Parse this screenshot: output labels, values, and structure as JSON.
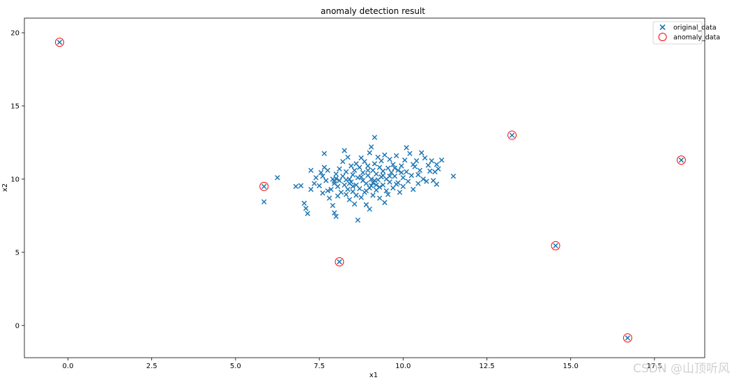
{
  "chart_data": {
    "type": "scatter",
    "title": "anomaly detection result",
    "xlabel": "x1",
    "ylabel": "x2",
    "xlim": [
      -1.3,
      19.0
    ],
    "ylim": [
      -2.2,
      21.0
    ],
    "xticks": [
      "0.0",
      "2.5",
      "5.0",
      "7.5",
      "10.0",
      "12.5",
      "15.0",
      "17.5"
    ],
    "xtick_values": [
      0.0,
      2.5,
      5.0,
      7.5,
      10.0,
      12.5,
      15.0,
      17.5
    ],
    "yticks": [
      "0",
      "5",
      "10",
      "15",
      "20"
    ],
    "ytick_values": [
      0,
      5,
      10,
      15,
      20
    ],
    "grid": false,
    "legend_position": "top-right",
    "series": [
      {
        "name": "original_data",
        "marker": "x",
        "color": "#1f77b4",
        "points": [
          [
            -0.25,
            19.35
          ],
          [
            5.85,
            9.5
          ],
          [
            8.1,
            4.35
          ],
          [
            13.25,
            13.0
          ],
          [
            14.55,
            5.45
          ],
          [
            16.7,
            -0.85
          ],
          [
            18.3,
            11.3
          ],
          [
            5.85,
            8.45
          ],
          [
            6.25,
            10.1
          ],
          [
            6.8,
            9.5
          ],
          [
            6.95,
            9.55
          ],
          [
            7.05,
            8.35
          ],
          [
            7.1,
            8.0
          ],
          [
            7.15,
            7.65
          ],
          [
            7.25,
            9.3
          ],
          [
            7.25,
            10.6
          ],
          [
            7.35,
            9.7
          ],
          [
            7.4,
            10.1
          ],
          [
            7.5,
            9.55
          ],
          [
            7.55,
            10.45
          ],
          [
            7.6,
            10.2
          ],
          [
            7.6,
            9.05
          ],
          [
            7.65,
            11.75
          ],
          [
            7.65,
            10.8
          ],
          [
            7.7,
            9.9
          ],
          [
            7.75,
            10.6
          ],
          [
            7.75,
            9.2
          ],
          [
            7.8,
            8.7
          ],
          [
            7.85,
            9.3
          ],
          [
            7.9,
            8.2
          ],
          [
            7.9,
            10.0
          ],
          [
            7.95,
            9.7
          ],
          [
            7.95,
            7.7
          ],
          [
            8.0,
            7.45
          ],
          [
            8.0,
            10.35
          ],
          [
            8.05,
            9.5
          ],
          [
            8.05,
            8.85
          ],
          [
            8.1,
            9.9
          ],
          [
            8.1,
            10.7
          ],
          [
            8.15,
            9.1
          ],
          [
            8.2,
            11.2
          ],
          [
            8.2,
            10.2
          ],
          [
            8.25,
            11.95
          ],
          [
            8.25,
            9.6
          ],
          [
            8.3,
            8.95
          ],
          [
            8.3,
            10.5
          ],
          [
            8.35,
            9.3
          ],
          [
            8.35,
            11.5
          ],
          [
            8.4,
            10.0
          ],
          [
            8.4,
            8.6
          ],
          [
            8.45,
            9.8
          ],
          [
            8.45,
            10.9
          ],
          [
            8.5,
            9.15
          ],
          [
            8.5,
            10.3
          ],
          [
            8.55,
            8.3
          ],
          [
            8.55,
            10.6
          ],
          [
            8.6,
            9.6
          ],
          [
            8.6,
            11.05
          ],
          [
            8.65,
            10.1
          ],
          [
            8.65,
            7.2
          ],
          [
            8.7,
            9.35
          ],
          [
            8.7,
            10.8
          ],
          [
            8.75,
            8.75
          ],
          [
            8.75,
            11.45
          ],
          [
            8.8,
            9.9
          ],
          [
            8.8,
            10.45
          ],
          [
            8.85,
            9.1
          ],
          [
            8.85,
            11.2
          ],
          [
            8.9,
            9.7
          ],
          [
            8.9,
            8.25
          ],
          [
            8.95,
            10.25
          ],
          [
            8.95,
            10.9
          ],
          [
            9.0,
            9.4
          ],
          [
            9.0,
            11.8
          ],
          [
            9.0,
            7.95
          ],
          [
            9.05,
            10.0
          ],
          [
            9.05,
            12.2
          ],
          [
            9.1,
            9.75
          ],
          [
            9.1,
            10.6
          ],
          [
            9.1,
            8.9
          ],
          [
            9.15,
            11.05
          ],
          [
            9.15,
            12.85
          ],
          [
            9.2,
            10.35
          ],
          [
            9.2,
            9.25
          ],
          [
            9.25,
            11.5
          ],
          [
            9.25,
            9.95
          ],
          [
            9.3,
            10.8
          ],
          [
            9.3,
            8.7
          ],
          [
            9.35,
            10.15
          ],
          [
            9.35,
            11.25
          ],
          [
            9.4,
            9.6
          ],
          [
            9.4,
            10.55
          ],
          [
            9.45,
            8.4
          ],
          [
            9.45,
            11.65
          ],
          [
            9.5,
            10.0
          ],
          [
            9.5,
            9.2
          ],
          [
            9.55,
            10.75
          ],
          [
            9.55,
            8.95
          ],
          [
            9.6,
            11.35
          ],
          [
            9.6,
            9.8
          ],
          [
            9.65,
            10.45
          ],
          [
            9.7,
            9.4
          ],
          [
            9.7,
            11.0
          ],
          [
            9.75,
            10.2
          ],
          [
            9.8,
            9.65
          ],
          [
            9.8,
            11.6
          ],
          [
            9.85,
            10.6
          ],
          [
            9.9,
            9.1
          ],
          [
            9.95,
            10.9
          ],
          [
            10.0,
            10.1
          ],
          [
            10.0,
            9.5
          ],
          [
            10.05,
            11.3
          ],
          [
            10.1,
            10.5
          ],
          [
            10.1,
            12.15
          ],
          [
            10.15,
            9.85
          ],
          [
            10.2,
            11.75
          ],
          [
            10.25,
            10.25
          ],
          [
            10.3,
            9.3
          ],
          [
            10.35,
            10.85
          ],
          [
            10.4,
            11.25
          ],
          [
            10.45,
            9.7
          ],
          [
            10.5,
            10.6
          ],
          [
            10.55,
            11.8
          ],
          [
            10.6,
            10.0
          ],
          [
            10.65,
            11.45
          ],
          [
            10.7,
            9.85
          ],
          [
            10.75,
            10.95
          ],
          [
            10.8,
            10.55
          ],
          [
            10.85,
            11.25
          ],
          [
            10.9,
            9.9
          ],
          [
            10.95,
            10.5
          ],
          [
            11.0,
            9.65
          ],
          [
            11.0,
            11.0
          ],
          [
            11.05,
            10.7
          ],
          [
            11.15,
            11.3
          ],
          [
            11.5,
            10.2
          ],
          [
            8.5,
            9.5
          ],
          [
            8.9,
            9.2
          ],
          [
            9.2,
            9.6
          ],
          [
            9.6,
            10.2
          ],
          [
            9.95,
            10.45
          ],
          [
            8.3,
            9.95
          ],
          [
            8.75,
            10.15
          ],
          [
            9.05,
            9.55
          ],
          [
            9.4,
            10.25
          ],
          [
            9.75,
            10.75
          ],
          [
            7.95,
            9.85
          ],
          [
            8.6,
            8.9
          ],
          [
            8.0,
            10.05
          ],
          [
            9.3,
            9.45
          ],
          [
            9.85,
            9.75
          ],
          [
            10.3,
            11.0
          ],
          [
            8.95,
            10.6
          ],
          [
            9.15,
            9.9
          ],
          [
            10.45,
            10.3
          ],
          [
            8.4,
            9.7
          ]
        ]
      },
      {
        "name": "anomaly_data",
        "marker": "o-open",
        "color": "#ff0000",
        "points": [
          [
            -0.25,
            19.35
          ],
          [
            5.85,
            9.5
          ],
          [
            8.1,
            4.35
          ],
          [
            13.25,
            13.0
          ],
          [
            14.55,
            5.45
          ],
          [
            16.7,
            -0.85
          ],
          [
            18.3,
            11.3
          ]
        ]
      }
    ]
  },
  "watermark": "CSDN @山顶听风"
}
